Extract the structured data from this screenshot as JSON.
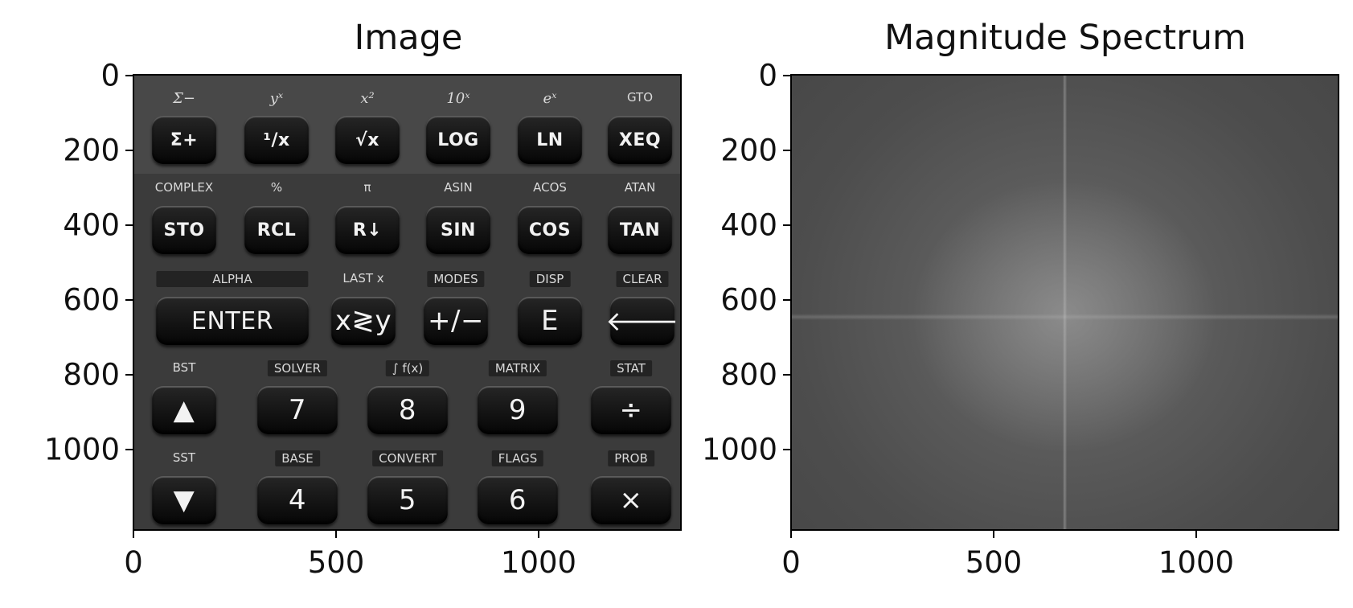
{
  "panels": [
    {
      "title": "Image",
      "y_ticks": [
        "0",
        "200",
        "400",
        "600",
        "800",
        "1000"
      ],
      "x_ticks": [
        "0",
        "500",
        "1000"
      ]
    },
    {
      "title": "Magnitude Spectrum",
      "y_ticks": [
        "0",
        "200",
        "400",
        "600",
        "800",
        "1000"
      ],
      "x_ticks": [
        "0",
        "500",
        "1000"
      ]
    }
  ],
  "calculator": {
    "rows": [
      {
        "shifts": [
          "Σ−",
          "yˣ",
          "x²",
          "10ˣ",
          "eˣ",
          "GTO"
        ],
        "keys": [
          "Σ+",
          "¹/x",
          "√x",
          "LOG",
          "LN",
          "XEQ"
        ]
      },
      {
        "shifts": [
          "COMPLEX",
          "%",
          "π",
          "ASIN",
          "ACOS",
          "ATAN"
        ],
        "keys": [
          "STO",
          "RCL",
          "R↓",
          "SIN",
          "COS",
          "TAN"
        ]
      },
      {
        "shifts": [
          "ALPHA",
          "LAST x",
          "MODES",
          "DISP",
          "CLEAR"
        ],
        "keys": [
          "ENTER",
          "x≷y",
          "+/−",
          "E",
          "🡐"
        ]
      },
      {
        "shifts": [
          "BST",
          "SOLVER",
          "∫ f(x)",
          "MATRIX",
          "STAT"
        ],
        "keys": [
          "▲",
          "7",
          "8",
          "9",
          "÷"
        ]
      },
      {
        "shifts": [
          "SST",
          "BASE",
          "CONVERT",
          "FLAGS",
          "PROB"
        ],
        "keys": [
          "▼",
          "4",
          "5",
          "6",
          "×"
        ]
      }
    ]
  },
  "colors": {
    "calculator_body": "#3b3b3b",
    "key_face": "#121212",
    "spectrum_background": "#4d4d4d"
  }
}
